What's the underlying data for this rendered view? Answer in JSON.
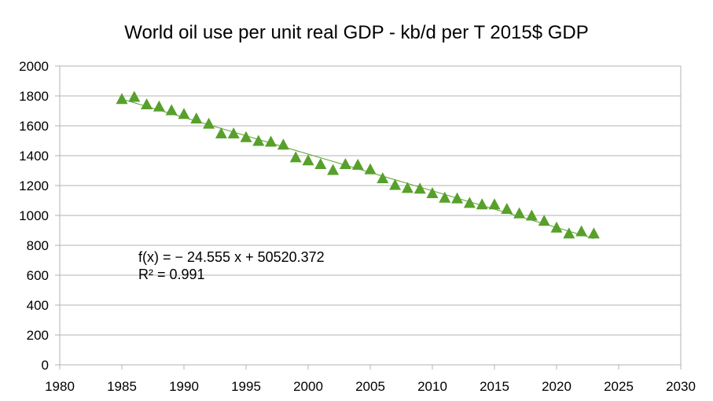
{
  "chart_data": {
    "type": "scatter",
    "title": "World oil use per unit real GDP - kb/d per T 2015$ GDP",
    "xlabel": "",
    "ylabel": "",
    "xlim": [
      1980,
      2030
    ],
    "ylim": [
      0,
      2000
    ],
    "x_ticks": [
      1980,
      1985,
      1990,
      1995,
      2000,
      2005,
      2010,
      2015,
      2020,
      2025,
      2030
    ],
    "y_ticks": [
      0,
      200,
      400,
      600,
      800,
      1000,
      1200,
      1400,
      1600,
      1800,
      2000
    ],
    "grid": "horizontal",
    "marker": "triangle",
    "marker_color": "#57a02b",
    "trendline_color": "#57a02b",
    "series": [
      {
        "x": [
          1985,
          1986,
          1987,
          1988,
          1989,
          1990,
          1991,
          1992,
          1993,
          1994,
          1995,
          1996,
          1997,
          1998,
          1999,
          2000,
          2001,
          2002,
          2003,
          2004,
          2005,
          2006,
          2007,
          2008,
          2009,
          2010,
          2011,
          2012,
          2013,
          2014,
          2015,
          2016,
          2017,
          2018,
          2019,
          2020,
          2021,
          2022,
          2023
        ],
        "y": [
          1780,
          1795,
          1745,
          1730,
          1705,
          1680,
          1650,
          1615,
          1550,
          1550,
          1525,
          1500,
          1495,
          1475,
          1390,
          1370,
          1345,
          1305,
          1345,
          1340,
          1310,
          1250,
          1205,
          1185,
          1180,
          1150,
          1120,
          1115,
          1085,
          1075,
          1075,
          1045,
          1015,
          1000,
          965,
          920,
          880,
          895,
          880
        ]
      }
    ],
    "trendline": {
      "slope": -24.555,
      "intercept": 50520.372,
      "x_range": [
        1985,
        2023
      ],
      "equation": "f(x) = − 24.555 x + 50520.372",
      "r_squared": "R² = 0.991"
    }
  }
}
